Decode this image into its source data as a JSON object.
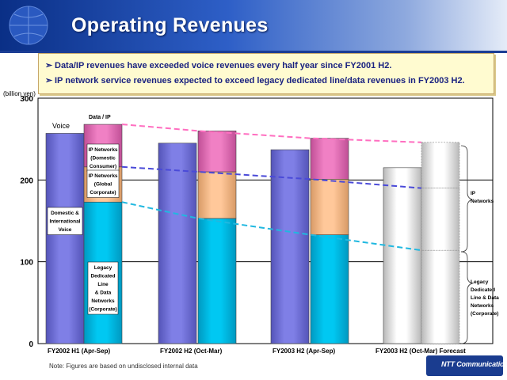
{
  "slide": {
    "title": "Operating Revenues",
    "bullets": [
      "Data/IP revenues have exceeded voice revenues every half year since FY2001 H2.",
      "IP network service revenues expected to exceed legacy dedicated line/data revenues in FY2003 H2."
    ],
    "footnote": "Note: Figures are based on undisclosed internal data",
    "brand": "NTT Communications"
  },
  "colors": {
    "voice": "#7f7fe6",
    "legacy": "#00c8f2",
    "ip_global": "#ffc89a",
    "ip_consumer": "#f080c4",
    "forecast": "#dcdcdc",
    "pink_dash": "#ff6ec0",
    "blue_dash": "#4a4ad8",
    "cyan_dash": "#20b8e0"
  },
  "chart_data": {
    "type": "bar",
    "ylabel": "(billion yen)",
    "ylim": [
      0,
      300
    ],
    "yticks": [
      "0",
      "100",
      "200",
      "300"
    ],
    "grid": true,
    "categories": [
      "FY2002 H1 (Apr-Sep)",
      "FY2002 H2 (Oct-Mar)",
      "FY2003 H2 (Apr-Sep)",
      "FY2003 H2 (Oct-Mar) Forecast"
    ],
    "series_voice": {
      "name": "Voice",
      "values": [
        257,
        245,
        237,
        215
      ]
    },
    "series_data_ip_stack": [
      {
        "name": "Legacy Dedicated Line & Data Networks (Corporate)",
        "values": [
          173,
          153,
          133,
          114
        ]
      },
      {
        "name": "IP Networks (Global Corporate)",
        "values": [
          43,
          57,
          68,
          76
        ]
      },
      {
        "name": "IP Networks (Domestic Consumer)",
        "values": [
          52,
          50,
          50,
          56
        ]
      }
    ],
    "annotations": {
      "voice": "Voice",
      "data_ip": "Data / IP",
      "ip_domestic": [
        "IP Networks",
        "(Domestic",
        "Consumer)"
      ],
      "ip_global": [
        "IP Networks",
        "(Global",
        "Corporate)"
      ],
      "voice_box": [
        "Domestic &",
        "International",
        "Voice"
      ],
      "legacy": [
        "Legacy",
        "Dedicated",
        "Line",
        "& Data",
        "Networks",
        "(Corporate)"
      ],
      "bracket_ip": [
        "IP",
        "Networks"
      ],
      "bracket_legacy": [
        "Legacy",
        "Dedicated",
        "Line & Data",
        "Networks",
        "(Corporate)"
      ]
    }
  }
}
